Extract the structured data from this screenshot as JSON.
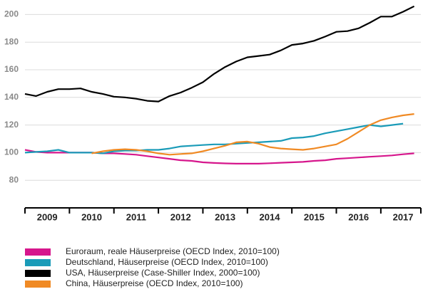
{
  "chart_data": {
    "type": "line",
    "x": [
      2009,
      2009.25,
      2009.5,
      2009.75,
      2010,
      2010.25,
      2010.5,
      2010.75,
      2011,
      2011.25,
      2011.5,
      2011.75,
      2012,
      2012.25,
      2012.5,
      2012.75,
      2013,
      2013.25,
      2013.5,
      2013.75,
      2014,
      2014.25,
      2014.5,
      2014.75,
      2015,
      2015.25,
      2015.5,
      2015.75,
      2016,
      2016.25,
      2016.5,
      2016.75,
      2017,
      2017.25,
      2017.5,
      2017.75
    ],
    "series": [
      {
        "name": "Euroraum, reale Häuserpreise (OECD Index, 2010=100)",
        "color": "#d6168c",
        "values": [
          102,
          100.5,
          100,
          100,
          100,
          100,
          100,
          99.5,
          99.5,
          99,
          98.5,
          97.5,
          96.5,
          95.5,
          94.5,
          94,
          93,
          92.5,
          92.2,
          92,
          92,
          92,
          92.3,
          92.7,
          93,
          93.3,
          94,
          94.5,
          95.5,
          96,
          96.5,
          97,
          97.5,
          98,
          98.8,
          99.5
        ]
      },
      {
        "name": "Deutschland, Häuserpreise (OECD Index, 2010=100)",
        "color": "#1a9bb8",
        "values": [
          100,
          100.5,
          101,
          102,
          100,
          100,
          100,
          99.5,
          101,
          101.5,
          101.5,
          102,
          102,
          103,
          104.5,
          105,
          105.5,
          106,
          106,
          106.5,
          107,
          107.5,
          108,
          108.5,
          110.5,
          111,
          112,
          114,
          115.5,
          117,
          118.5,
          120,
          119,
          120,
          121,
          null
        ]
      },
      {
        "name": "USA, Häuserpreise (Case-Shiller Index, 2000=100)",
        "color": "#000000",
        "values": [
          142.5,
          141,
          144,
          146,
          146,
          146.5,
          144,
          142.5,
          140.5,
          140,
          139,
          137.5,
          137,
          141,
          143.5,
          147,
          151,
          157,
          162,
          166,
          169,
          170,
          171,
          174,
          178,
          179,
          181,
          184,
          187.5,
          188,
          190,
          194,
          198.5,
          198.5,
          202,
          206
        ]
      },
      {
        "name": "China, Häuserpreise (OECD Index, 2010=100)",
        "color": "#f08a24",
        "values": [
          null,
          null,
          null,
          null,
          null,
          null,
          99.5,
          101,
          102,
          102.5,
          102,
          101,
          99.5,
          98.5,
          99,
          99.5,
          101,
          103,
          105,
          107.5,
          108,
          106.5,
          104,
          103,
          102.5,
          102,
          103,
          104.5,
          106,
          110,
          115,
          120,
          123.5,
          125.5,
          127,
          128
        ]
      }
    ],
    "xlim": [
      2009,
      2017.9
    ],
    "xticks": [
      2009,
      2010,
      2011,
      2012,
      2013,
      2014,
      2015,
      2016,
      2017
    ],
    "ylim": [
      60,
      210
    ],
    "yticks": [
      80,
      100,
      120,
      140,
      160,
      180,
      200
    ],
    "grid": true,
    "legend": "bottom"
  }
}
